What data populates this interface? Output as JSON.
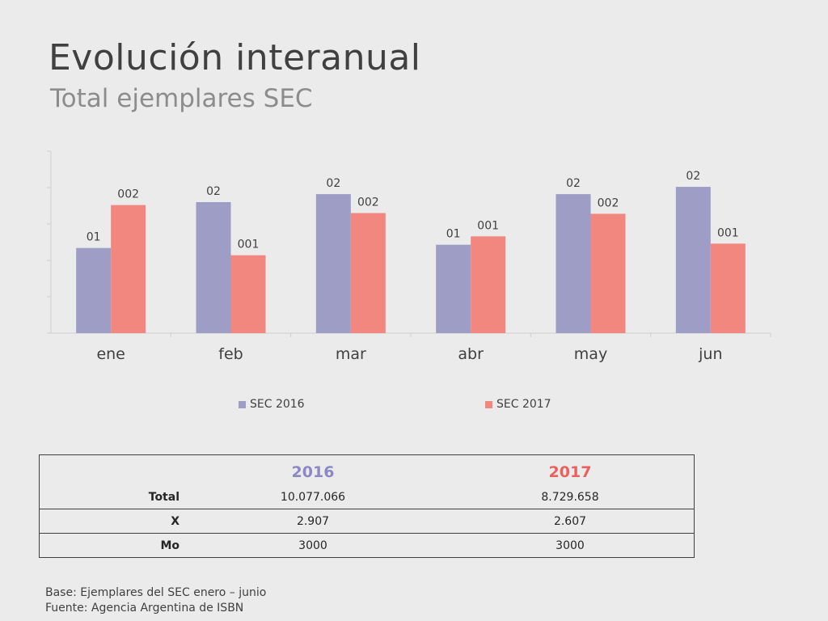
{
  "title": "Evolución interanual",
  "subtitle": "Total ejemplares  SEC",
  "colors": {
    "sec2016": "#9d9dc6",
    "sec2017": "#f1877f",
    "axis": "#cfcfcf"
  },
  "chart_data": {
    "type": "bar",
    "categories": [
      "ene",
      "feb",
      "mar",
      "abr",
      "may",
      "jun"
    ],
    "ylim": [
      0,
      2500
    ],
    "series": [
      {
        "name": "SEC 2016",
        "values": [
          1170,
          1800,
          1910,
          1215,
          1910,
          2010
        ],
        "labels": [
          "01",
          "02",
          "02",
          "01",
          "02",
          "02"
        ]
      },
      {
        "name": "SEC 2017",
        "values": [
          1760,
          1070,
          1650,
          1330,
          1640,
          1230
        ],
        "labels": [
          "002",
          "001",
          "002",
          "001",
          "002",
          "001"
        ]
      }
    ],
    "legend_position": "bottom"
  },
  "table": {
    "headers": [
      "",
      "2016",
      "2017"
    ],
    "rows": [
      {
        "label": "Total",
        "v2016": "10.077.066",
        "v2017": "8.729.658"
      },
      {
        "label": "X",
        "v2016": "2.907",
        "v2017": "2.607"
      },
      {
        "label": "Mo",
        "v2016": "3000",
        "v2017": "3000"
      }
    ]
  },
  "footer": {
    "base": "Base: Ejemplares del SEC enero – junio",
    "source": "Fuente:  Agencia Argentina de ISBN"
  }
}
